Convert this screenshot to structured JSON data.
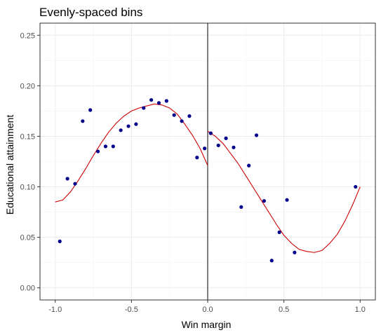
{
  "chart_data": {
    "type": "scatter",
    "title": "Evenly-spaced bins",
    "xlabel": "Win margin",
    "ylabel": "Educational attainment",
    "xlim": [
      -1.1,
      1.1
    ],
    "ylim": [
      -0.012,
      0.262
    ],
    "x_ticks": [
      -1.0,
      -0.5,
      0.0,
      0.5,
      1.0
    ],
    "x_tick_labels": [
      "-1.0",
      "-0.5",
      "0.0",
      "0.5",
      "1.0"
    ],
    "y_ticks": [
      0.0,
      0.05,
      0.1,
      0.15,
      0.2,
      0.25
    ],
    "y_tick_labels": [
      "0.00",
      "0.05",
      "0.10",
      "0.15",
      "0.20",
      "0.25"
    ],
    "grid": true,
    "cutoff_line_x": 0,
    "point_color": "#00008b",
    "fit_color": "#cc0000",
    "points": [
      {
        "x": -0.97,
        "y": 0.046
      },
      {
        "x": -0.92,
        "y": 0.108
      },
      {
        "x": -0.87,
        "y": 0.103
      },
      {
        "x": -0.82,
        "y": 0.165
      },
      {
        "x": -0.77,
        "y": 0.176
      },
      {
        "x": -0.72,
        "y": 0.135
      },
      {
        "x": -0.67,
        "y": 0.14
      },
      {
        "x": -0.62,
        "y": 0.14
      },
      {
        "x": -0.57,
        "y": 0.156
      },
      {
        "x": -0.52,
        "y": 0.16
      },
      {
        "x": -0.47,
        "y": 0.162
      },
      {
        "x": -0.42,
        "y": 0.178
      },
      {
        "x": -0.37,
        "y": 0.186
      },
      {
        "x": -0.32,
        "y": 0.183
      },
      {
        "x": -0.27,
        "y": 0.185
      },
      {
        "x": -0.22,
        "y": 0.171
      },
      {
        "x": -0.17,
        "y": 0.165
      },
      {
        "x": -0.12,
        "y": 0.17
      },
      {
        "x": -0.07,
        "y": 0.129
      },
      {
        "x": -0.02,
        "y": 0.138
      },
      {
        "x": 0.02,
        "y": 0.153
      },
      {
        "x": 0.07,
        "y": 0.141
      },
      {
        "x": 0.12,
        "y": 0.148
      },
      {
        "x": 0.17,
        "y": 0.139
      },
      {
        "x": 0.22,
        "y": 0.08
      },
      {
        "x": 0.27,
        "y": 0.121
      },
      {
        "x": 0.32,
        "y": 0.151
      },
      {
        "x": 0.37,
        "y": 0.086
      },
      {
        "x": 0.42,
        "y": 0.027
      },
      {
        "x": 0.47,
        "y": 0.055
      },
      {
        "x": 0.52,
        "y": 0.087
      },
      {
        "x": 0.57,
        "y": 0.035
      },
      {
        "x": 0.97,
        "y": 0.1
      }
    ],
    "fit_left": [
      [
        -1.0,
        0.085
      ],
      [
        -0.95,
        0.087
      ],
      [
        -0.9,
        0.095
      ],
      [
        -0.85,
        0.106
      ],
      [
        -0.8,
        0.118
      ],
      [
        -0.75,
        0.131
      ],
      [
        -0.7,
        0.143
      ],
      [
        -0.65,
        0.154
      ],
      [
        -0.6,
        0.163
      ],
      [
        -0.55,
        0.17
      ],
      [
        -0.5,
        0.175
      ],
      [
        -0.45,
        0.178
      ],
      [
        -0.4,
        0.18
      ],
      [
        -0.35,
        0.182
      ],
      [
        -0.3,
        0.181
      ],
      [
        -0.25,
        0.178
      ],
      [
        -0.2,
        0.172
      ],
      [
        -0.15,
        0.162
      ],
      [
        -0.1,
        0.151
      ],
      [
        -0.05,
        0.138
      ],
      [
        0.0,
        0.121
      ]
    ],
    "fit_right": [
      [
        0.0,
        0.155
      ],
      [
        0.05,
        0.15
      ],
      [
        0.1,
        0.143
      ],
      [
        0.15,
        0.133
      ],
      [
        0.2,
        0.123
      ],
      [
        0.25,
        0.111
      ],
      [
        0.3,
        0.099
      ],
      [
        0.35,
        0.087
      ],
      [
        0.4,
        0.075
      ],
      [
        0.45,
        0.063
      ],
      [
        0.5,
        0.052
      ],
      [
        0.55,
        0.044
      ],
      [
        0.6,
        0.038
      ],
      [
        0.65,
        0.036
      ],
      [
        0.7,
        0.035
      ],
      [
        0.75,
        0.037
      ],
      [
        0.8,
        0.044
      ],
      [
        0.85,
        0.053
      ],
      [
        0.9,
        0.066
      ],
      [
        0.95,
        0.082
      ],
      [
        1.0,
        0.1
      ]
    ]
  }
}
